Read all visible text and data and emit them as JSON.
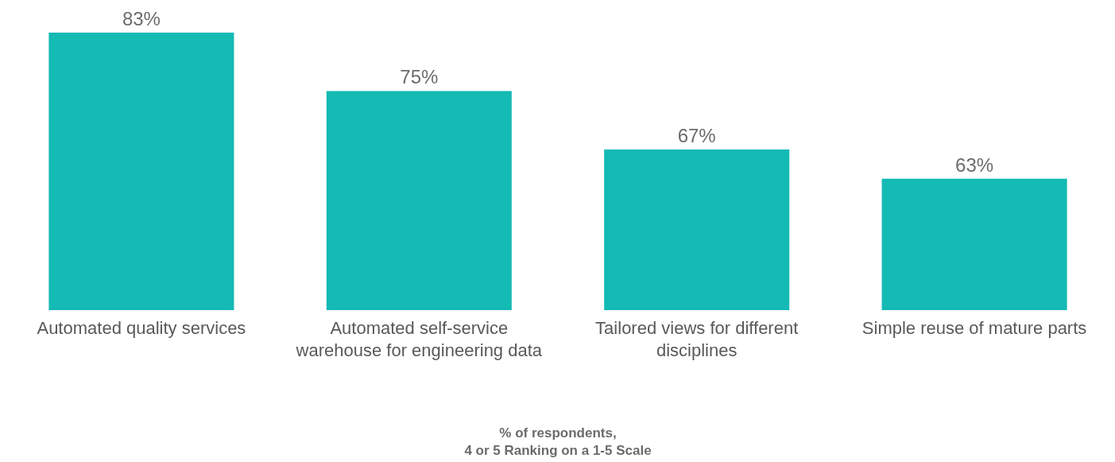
{
  "chart_data": {
    "type": "bar",
    "categories": [
      "Automated quality services",
      "Automated self-service warehouse for engineering data",
      "Tailored views for different disciplines",
      "Simple reuse of mature parts"
    ],
    "values": [
      83,
      75,
      67,
      63
    ],
    "value_labels": [
      "83%",
      "75%",
      "67%",
      "63%"
    ],
    "color": "#14bab4",
    "annotations": [
      "% of respondents,\n4 or 5 Ranking on a 1-5 Scale"
    ],
    "ylim": [
      45,
      83
    ],
    "tick_labels": "x",
    "grid": false
  }
}
